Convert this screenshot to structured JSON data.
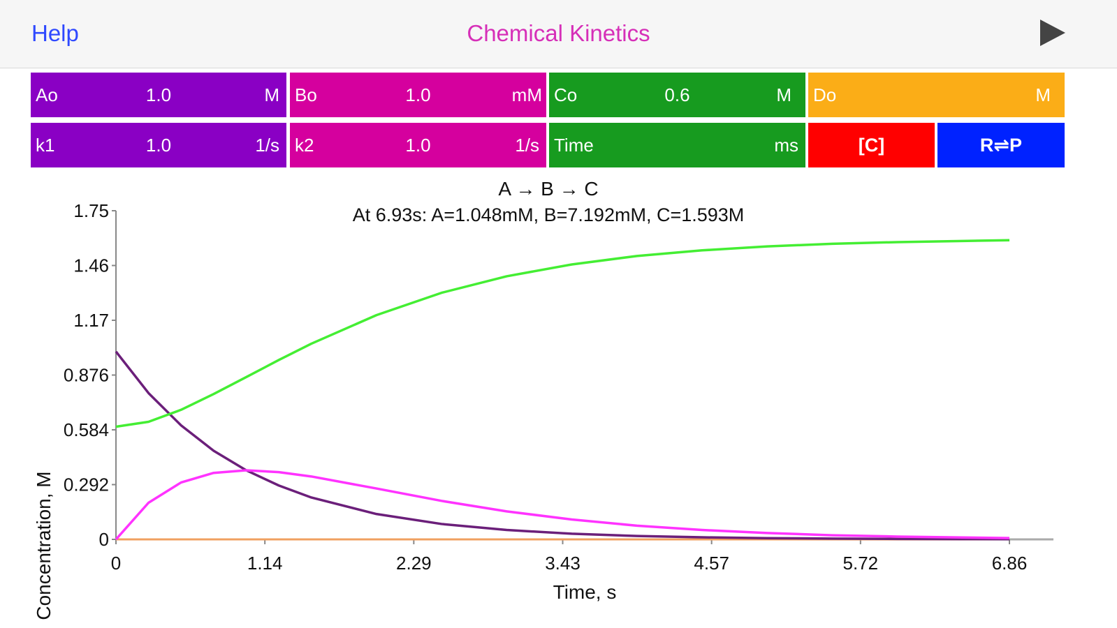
{
  "header": {
    "help_label": "Help",
    "title": "Chemical Kinetics",
    "play_icon": "play-icon"
  },
  "params": {
    "Ao": {
      "label": "Ao",
      "value": "1.0",
      "unit": "M",
      "color": "#8a00c4"
    },
    "Bo": {
      "label": "Bo",
      "value": "1.0",
      "unit": "mM",
      "color": "#d5009e"
    },
    "Co": {
      "label": "Co",
      "value": "0.6",
      "unit": "M",
      "color": "#179b1f"
    },
    "Do": {
      "label": "Do",
      "value": "",
      "unit": "M",
      "color": "#fbad17"
    },
    "k1": {
      "label": "k1",
      "value": "1.0",
      "unit": "1/s",
      "color": "#8a00c4"
    },
    "k2": {
      "label": "k2",
      "value": "1.0",
      "unit": "1/s",
      "color": "#d5009e"
    },
    "time": {
      "label": "Time",
      "value": "",
      "unit": "ms",
      "color": "#179b1f"
    }
  },
  "buttons": {
    "concentration": {
      "label": "[C]",
      "color": "#ff0000"
    },
    "reversible": {
      "label": "R⇌P",
      "color": "#0022ff"
    }
  },
  "chart_data": {
    "type": "line",
    "title": "A → B → C",
    "subtitle": "At 6.93s: A=1.048mM, B=7.192mM, C=1.593M",
    "xlabel": "Time, s",
    "ylabel": "Concentration, M",
    "xlim": [
      0,
      6.93
    ],
    "ylim": [
      0,
      1.75
    ],
    "xticks": [
      "0",
      "1.14",
      "2.29",
      "3.43",
      "4.57",
      "5.72",
      "6.86"
    ],
    "yticks": [
      "0",
      "0.292",
      "0.584",
      "0.876",
      "1.17",
      "1.46",
      "1.75"
    ],
    "x": [
      0,
      0.25,
      0.5,
      0.75,
      1.0,
      1.25,
      1.5,
      2.0,
      2.5,
      3.0,
      3.5,
      4.0,
      4.5,
      5.0,
      5.5,
      6.0,
      6.5,
      6.93
    ],
    "series": [
      {
        "color": "#6b1f7a",
        "values": [
          1.0,
          0.779,
          0.607,
          0.472,
          0.368,
          0.287,
          0.223,
          0.135,
          0.082,
          0.05,
          0.03,
          0.018,
          0.011,
          0.0067,
          0.0041,
          0.0025,
          0.0015,
          0.001
        ]
      },
      {
        "color": "#ff33ff",
        "values": [
          0.0,
          0.195,
          0.303,
          0.354,
          0.368,
          0.358,
          0.335,
          0.271,
          0.205,
          0.149,
          0.106,
          0.073,
          0.05,
          0.034,
          0.022,
          0.015,
          0.01,
          0.007
        ]
      },
      {
        "color": "#44ee33",
        "values": [
          0.6,
          0.626,
          0.69,
          0.774,
          0.864,
          0.955,
          1.042,
          1.194,
          1.313,
          1.401,
          1.464,
          1.509,
          1.539,
          1.56,
          1.574,
          1.583,
          1.589,
          1.593
        ]
      },
      {
        "color": "#f0a060",
        "values": [
          0,
          0,
          0,
          0,
          0,
          0,
          0,
          0,
          0,
          0,
          0,
          0,
          0,
          0,
          0,
          0,
          0,
          0
        ]
      }
    ]
  }
}
